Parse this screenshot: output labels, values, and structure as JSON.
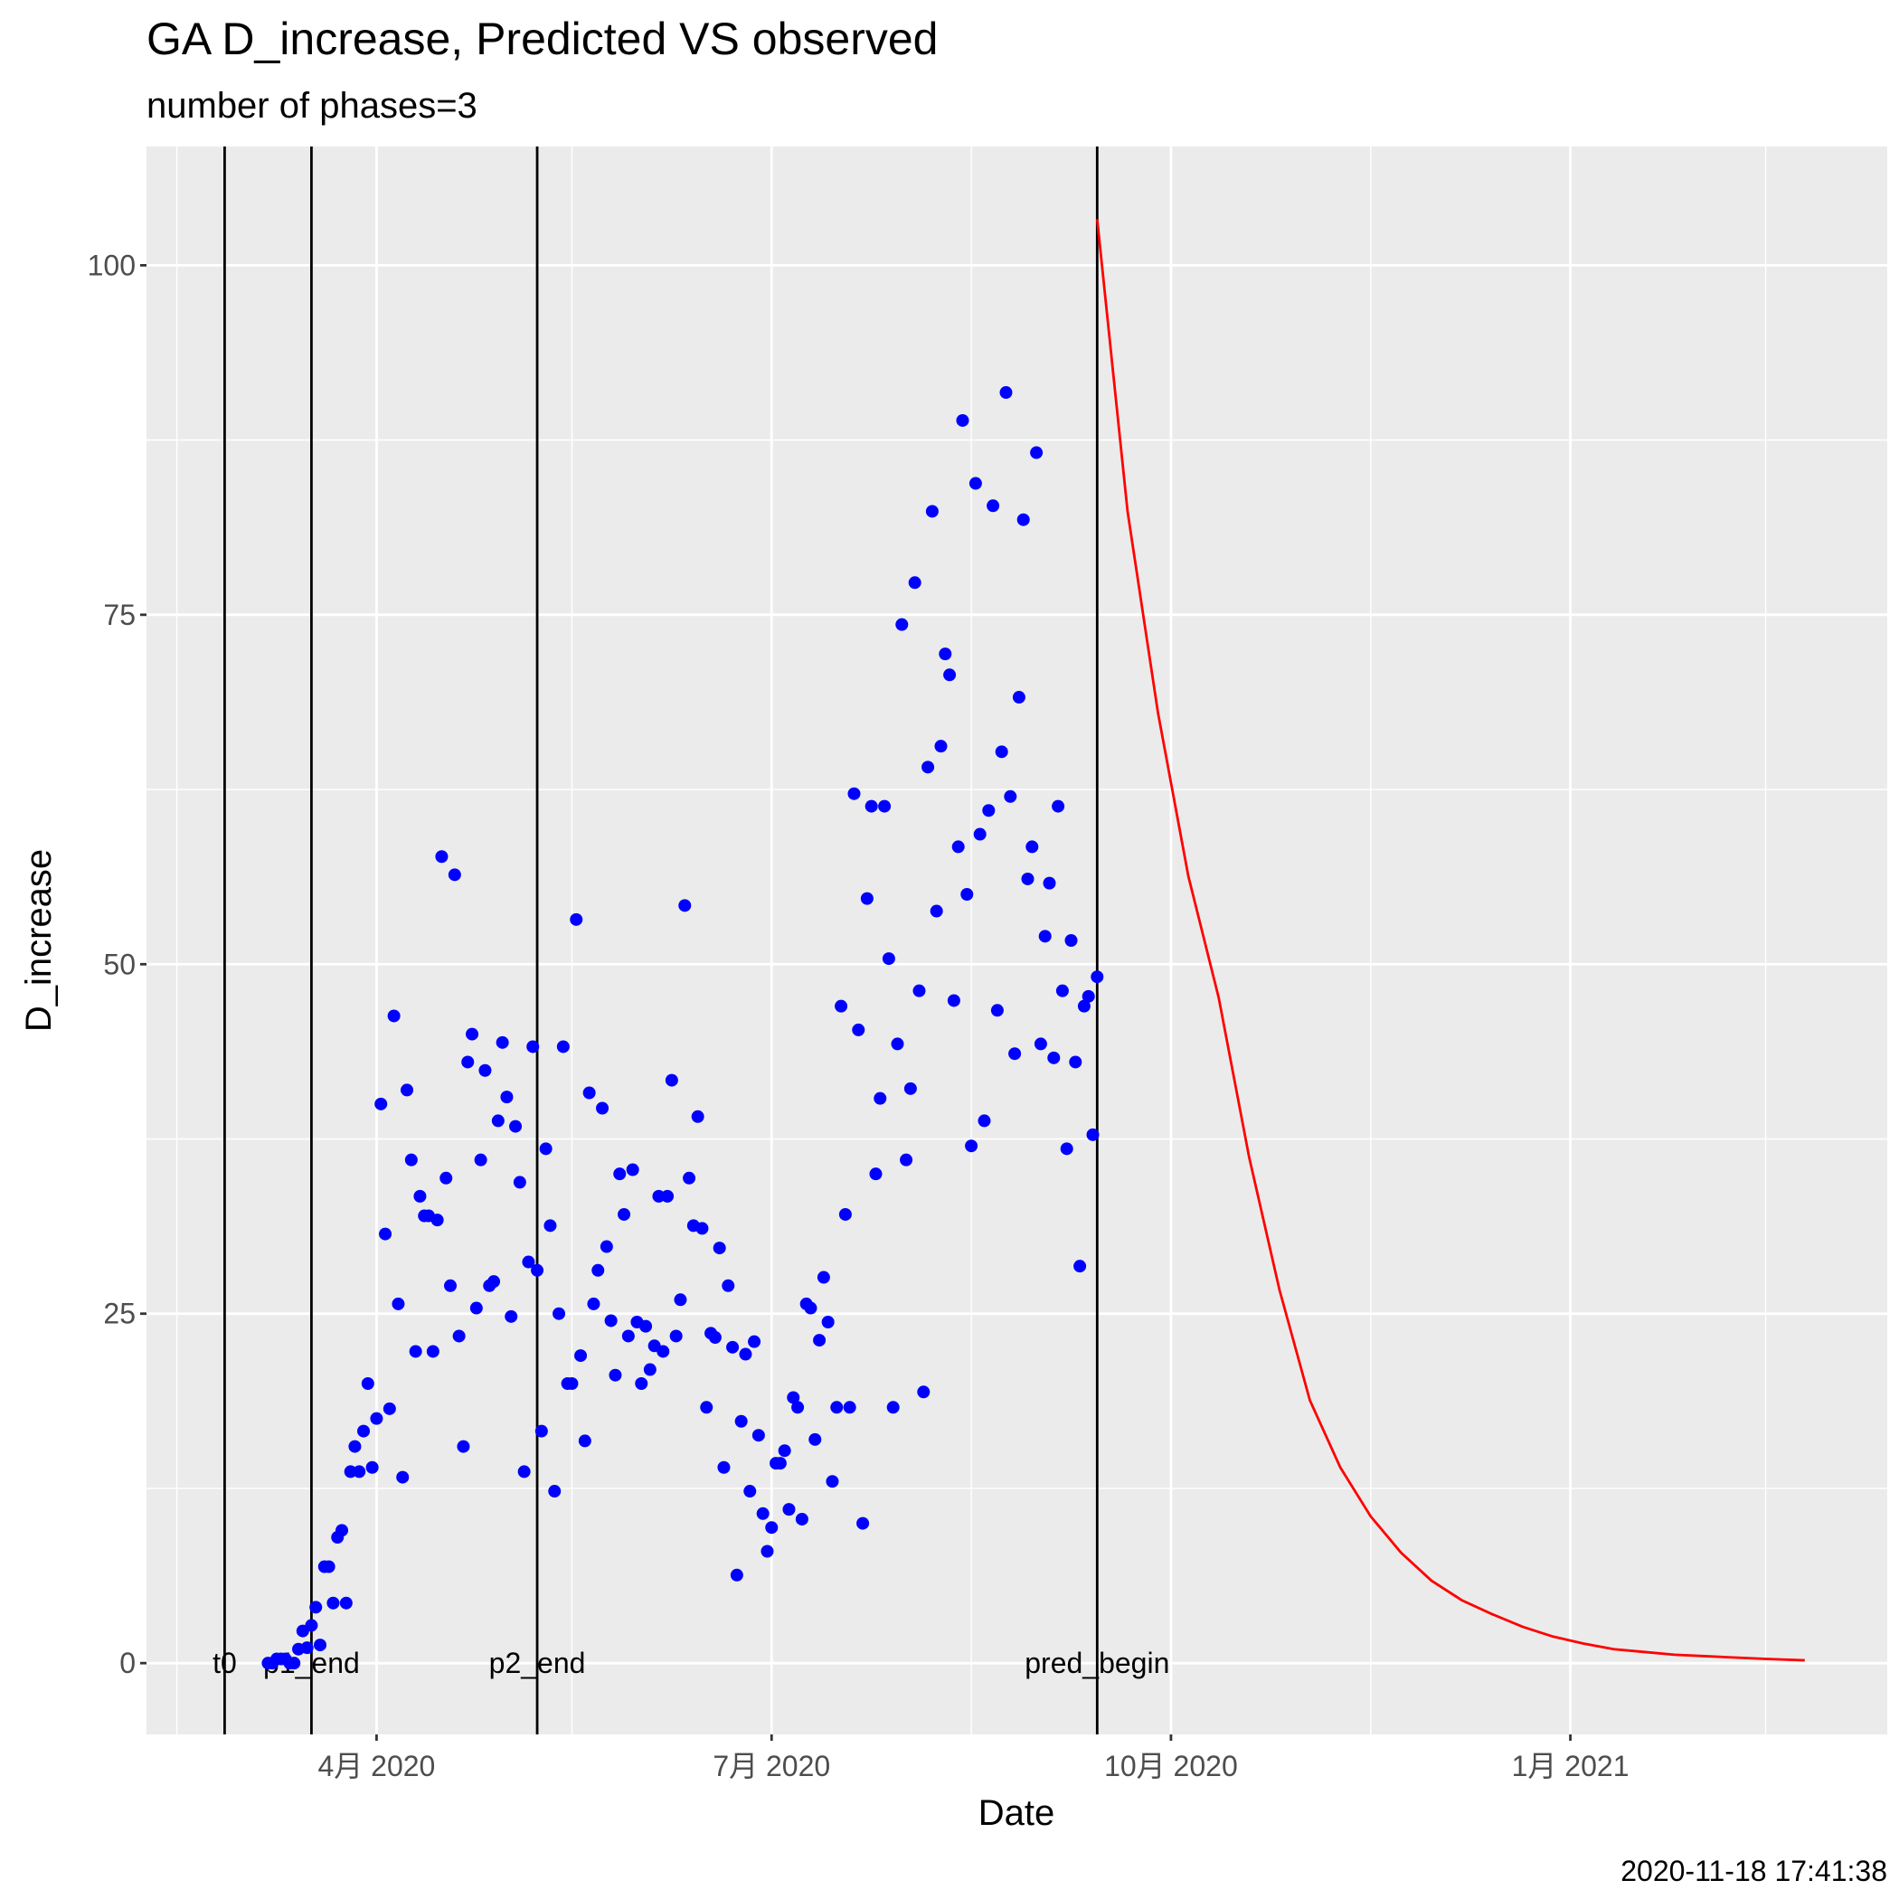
{
  "chart_data": {
    "type": "scatter",
    "title": "GA D_increase, Predicted VS observed",
    "subtitle": "number of phases=3",
    "xlabel": "Date",
    "ylabel": "D_increase",
    "caption": "2020-11-18 17:41:38",
    "xlim": [
      "2020-02-08",
      "2021-03-15"
    ],
    "ylim": [
      -5.1,
      108.5
    ],
    "xticks": [
      {
        "value": "2020-04-01",
        "label": "4月 2020"
      },
      {
        "value": "2020-07-01",
        "label": "7月 2020"
      },
      {
        "value": "2020-10-01",
        "label": "10月 2020"
      },
      {
        "value": "2021-01-01",
        "label": "1月 2021"
      }
    ],
    "xminor": [
      "2020-02-15",
      "2020-05-16",
      "2020-08-16",
      "2020-11-16",
      "2021-02-15"
    ],
    "yticks": [
      0,
      25,
      50,
      75,
      100
    ],
    "yminor": [
      12.5,
      37.5,
      62.5,
      87.5
    ],
    "grid": true,
    "vlines": [
      {
        "x": "2020-02-26",
        "label": "t0"
      },
      {
        "x": "2020-03-17",
        "label": "p1_end"
      },
      {
        "x": "2020-05-08",
        "label": "p2_end"
      },
      {
        "x": "2020-09-14",
        "label": "pred_begin"
      }
    ],
    "series": [
      {
        "type": "scatter",
        "color": "#0000ff",
        "x": [
          "2020-03-07",
          "2020-03-08",
          "2020-03-09",
          "2020-03-10",
          "2020-03-11",
          "2020-03-12",
          "2020-03-13",
          "2020-03-14",
          "2020-03-15",
          "2020-03-16",
          "2020-03-17",
          "2020-03-18",
          "2020-03-19",
          "2020-03-20",
          "2020-03-21",
          "2020-03-22",
          "2020-03-23",
          "2020-03-24",
          "2020-03-25",
          "2020-03-26",
          "2020-03-27",
          "2020-03-28",
          "2020-03-29",
          "2020-03-30",
          "2020-03-31",
          "2020-04-01",
          "2020-04-02",
          "2020-04-03",
          "2020-04-04",
          "2020-04-05",
          "2020-04-06",
          "2020-04-07",
          "2020-04-08",
          "2020-04-09",
          "2020-04-10",
          "2020-04-11",
          "2020-04-12",
          "2020-04-13",
          "2020-04-14",
          "2020-04-15",
          "2020-04-16",
          "2020-04-17",
          "2020-04-18",
          "2020-04-19",
          "2020-04-20",
          "2020-04-21",
          "2020-04-22",
          "2020-04-23",
          "2020-04-24",
          "2020-04-25",
          "2020-04-26",
          "2020-04-27",
          "2020-04-28",
          "2020-04-29",
          "2020-04-30",
          "2020-05-01",
          "2020-05-02",
          "2020-05-03",
          "2020-05-04",
          "2020-05-05",
          "2020-05-06",
          "2020-05-07",
          "2020-05-08",
          "2020-05-09",
          "2020-05-10",
          "2020-05-11",
          "2020-05-12",
          "2020-05-13",
          "2020-05-14",
          "2020-05-15",
          "2020-05-16",
          "2020-05-17",
          "2020-05-18",
          "2020-05-19",
          "2020-05-20",
          "2020-05-21",
          "2020-05-22",
          "2020-05-23",
          "2020-05-24",
          "2020-05-25",
          "2020-05-26",
          "2020-05-27",
          "2020-05-28",
          "2020-05-29",
          "2020-05-30",
          "2020-05-31",
          "2020-06-01",
          "2020-06-02",
          "2020-06-03",
          "2020-06-04",
          "2020-06-05",
          "2020-06-06",
          "2020-06-07",
          "2020-06-08",
          "2020-06-09",
          "2020-06-10",
          "2020-06-11",
          "2020-06-12",
          "2020-06-13",
          "2020-06-14",
          "2020-06-15",
          "2020-06-16",
          "2020-06-17",
          "2020-06-18",
          "2020-06-19",
          "2020-06-20",
          "2020-06-21",
          "2020-06-22",
          "2020-06-23",
          "2020-06-24",
          "2020-06-25",
          "2020-06-26",
          "2020-06-27",
          "2020-06-28",
          "2020-06-29",
          "2020-06-30",
          "2020-07-01",
          "2020-07-02",
          "2020-07-03",
          "2020-07-04",
          "2020-07-05",
          "2020-07-06",
          "2020-07-07",
          "2020-07-08",
          "2020-07-09",
          "2020-07-10",
          "2020-07-11",
          "2020-07-12",
          "2020-07-13",
          "2020-07-14",
          "2020-07-15",
          "2020-07-16",
          "2020-07-17",
          "2020-07-18",
          "2020-07-19",
          "2020-07-20",
          "2020-07-21",
          "2020-07-22",
          "2020-07-23",
          "2020-07-24",
          "2020-07-25",
          "2020-07-26",
          "2020-07-27",
          "2020-07-28",
          "2020-07-29",
          "2020-07-30",
          "2020-07-31",
          "2020-08-01",
          "2020-08-02",
          "2020-08-03",
          "2020-08-04",
          "2020-08-05",
          "2020-08-06",
          "2020-08-07",
          "2020-08-08",
          "2020-08-09",
          "2020-08-10",
          "2020-08-11",
          "2020-08-12",
          "2020-08-13",
          "2020-08-14",
          "2020-08-15",
          "2020-08-16",
          "2020-08-17",
          "2020-08-18",
          "2020-08-19",
          "2020-08-20",
          "2020-08-21",
          "2020-08-22",
          "2020-08-23",
          "2020-08-24",
          "2020-08-25",
          "2020-08-26",
          "2020-08-27",
          "2020-08-28",
          "2020-08-29",
          "2020-08-30",
          "2020-08-31",
          "2020-09-01",
          "2020-09-02",
          "2020-09-03",
          "2020-09-04",
          "2020-09-05",
          "2020-09-06",
          "2020-09-07",
          "2020-09-08",
          "2020-09-09",
          "2020-09-10",
          "2020-09-11",
          "2020-09-12",
          "2020-09-13",
          "2020-09-14"
        ],
        "values": [
          0,
          0,
          0.3,
          0.3,
          0.3,
          0,
          0,
          1,
          2.3,
          1.1,
          2.7,
          4,
          1.3,
          6.9,
          6.9,
          4.3,
          9,
          9.5,
          4.3,
          13.7,
          15.5,
          13.7,
          16.6,
          20,
          14,
          17.5,
          40,
          30.7,
          18.2,
          46.3,
          25.7,
          13.3,
          41,
          36,
          22.3,
          33.4,
          32,
          32,
          22.3,
          31.7,
          57.7,
          34.7,
          27,
          56.4,
          23.4,
          15.5,
          43,
          45,
          25.4,
          36,
          42.4,
          27,
          27.3,
          38.8,
          44.4,
          40.5,
          24.8,
          38.4,
          34.4,
          13.7,
          28.7,
          44.1,
          28.1,
          16.6,
          36.8,
          31.3,
          12.3,
          25,
          44.1,
          20,
          20,
          53.2,
          22,
          15.9,
          40.8,
          25.7,
          28.1,
          39.7,
          29.8,
          24.5,
          20.6,
          35,
          32.1,
          23.4,
          35.3,
          24.4,
          20,
          24.1,
          21,
          22.7,
          33.4,
          22.3,
          33.4,
          41.7,
          23.4,
          26,
          54.2,
          34.7,
          31.3,
          39.1,
          31.1,
          18.3,
          23.6,
          23.3,
          29.7,
          14,
          27,
          22.6,
          6.3,
          17.3,
          22.1,
          12.3,
          23,
          16.3,
          10.7,
          8,
          9.7,
          14.3,
          14.3,
          15.2,
          11,
          19,
          18.3,
          10.3,
          25.7,
          25.4,
          16,
          23.1,
          27.6,
          24.4,
          13,
          18.3,
          47,
          32.1,
          18.3,
          62.2,
          45.3,
          10,
          54.7,
          61.3,
          35,
          40.4,
          61.3,
          50.4,
          18.3,
          44.3,
          74.3,
          36,
          41.1,
          77.3,
          48.1,
          19.4,
          64.1,
          82.4,
          53.8,
          65.6,
          72.2,
          70.7,
          47.4,
          58.4,
          88.9,
          55,
          37,
          84.4,
          59.3,
          38.8,
          61,
          82.8,
          46.7,
          65.2,
          90.9,
          62,
          43.6,
          69.1,
          81.8,
          56.1,
          58.4,
          86.6,
          44.3,
          52,
          55.8,
          43.3,
          61.3,
          48.1,
          36.8,
          51.7,
          43,
          28.4,
          47,
          47.7,
          37.8,
          49.1
        ]
      },
      {
        "type": "line",
        "color": "#ff0000",
        "x": [
          "2020-09-14",
          "2020-09-21",
          "2020-09-28",
          "2020-10-05",
          "2020-10-12",
          "2020-10-19",
          "2020-10-26",
          "2020-11-02",
          "2020-11-09",
          "2020-11-16",
          "2020-11-23",
          "2020-11-30",
          "2020-12-07",
          "2020-12-14",
          "2020-12-21",
          "2020-12-28",
          "2021-01-04",
          "2021-01-11",
          "2021-01-18",
          "2021-01-25",
          "2021-02-01",
          "2021-02-08",
          "2021-02-15",
          "2021-02-24"
        ],
        "values": [
          103.3,
          82.4,
          68,
          56.3,
          47.6,
          36.2,
          26.7,
          18.8,
          14,
          10.5,
          7.9,
          5.9,
          4.5,
          3.5,
          2.6,
          1.9,
          1.4,
          1.0,
          0.8,
          0.6,
          0.5,
          0.4,
          0.3,
          0.2
        ]
      }
    ]
  }
}
